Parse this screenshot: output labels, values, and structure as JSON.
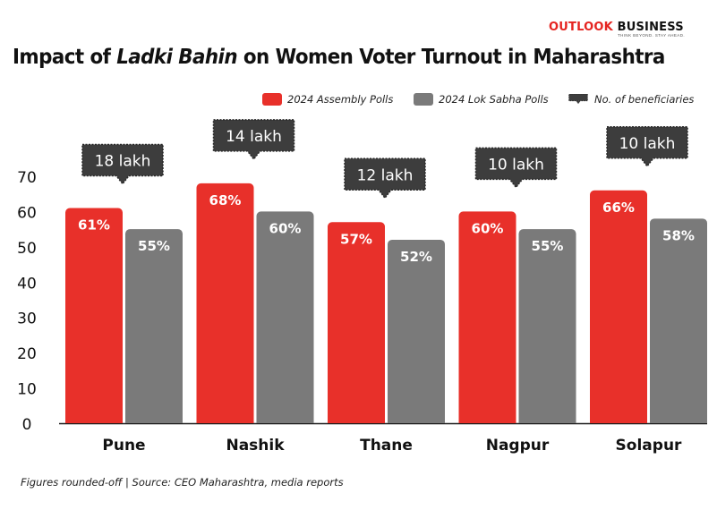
{
  "brand": {
    "name_part1": "OUTLOOK",
    "name_part2": "BUSINESS",
    "tagline": "THINK BEYOND. STAY AHEAD."
  },
  "title": {
    "part1": "Impact of ",
    "part2_italic": "Ladki Bahin",
    "part3": " on Women Voter Turnout in Maharashtra"
  },
  "legend": {
    "assembly": "2024 Assembly Polls",
    "loksabha": "2024 Lok Sabha Polls",
    "beneficiaries": "No. of beneficiaries"
  },
  "footnote": "Figures rounded-off | Source: CEO Maharashtra, media reports",
  "colors": {
    "assembly": "#e8302a",
    "loksabha": "#7a7a7a",
    "callout": "#3d3d3d",
    "brand_red": "#e52420"
  },
  "chart_data": {
    "type": "bar",
    "categories": [
      "Pune",
      "Nashik",
      "Thane",
      "Nagpur",
      "Solapur"
    ],
    "series": [
      {
        "name": "2024 Assembly Polls",
        "values": [
          61,
          68,
          57,
          60,
          66
        ],
        "labels": [
          "61%",
          "68%",
          "57%",
          "60%",
          "66%"
        ]
      },
      {
        "name": "2024 Lok Sabha Polls",
        "values": [
          55,
          60,
          52,
          55,
          58
        ],
        "labels": [
          "55%",
          "60%",
          "52%",
          "55%",
          "58%"
        ]
      }
    ],
    "annotations": [
      "18 lakh",
      "14 lakh",
      "12 lakh",
      "10 lakh",
      "10 lakh"
    ],
    "ylim": [
      0,
      70
    ],
    "yticks": [
      "0",
      "10",
      "20",
      "30",
      "40",
      "50",
      "60",
      "70"
    ],
    "grid": false,
    "legend_position": "top-right"
  }
}
